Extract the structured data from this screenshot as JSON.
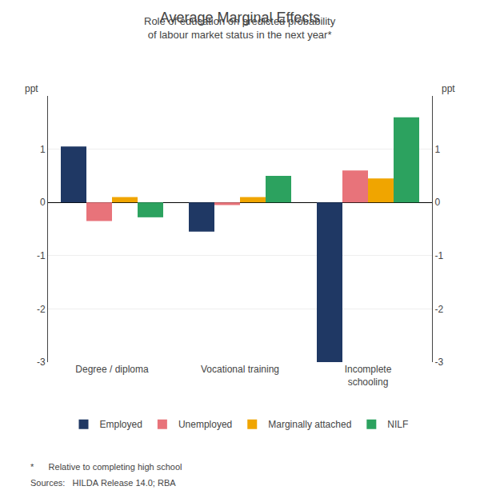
{
  "chart_data": {
    "type": "bar",
    "title": "Average Marginal Effects",
    "subtitle": "Role of education on predicted probability\nof labour market status in the next year*",
    "categories": [
      "Degree / diploma",
      "Vocational training",
      "Incomplete\nschooling"
    ],
    "series": [
      {
        "name": "Employed",
        "color": "#1f3864",
        "values": [
          1.05,
          -0.55,
          -3.0
        ]
      },
      {
        "name": "Unemployed",
        "color": "#e8737a",
        "values": [
          -0.35,
          -0.05,
          0.6
        ]
      },
      {
        "name": "Marginally attached",
        "color": "#f0a500",
        "values": [
          0.1,
          0.1,
          0.45
        ]
      },
      {
        "name": "NILF",
        "color": "#2ca25f",
        "values": [
          -0.28,
          0.5,
          1.6
        ]
      }
    ],
    "ylabel": "ppt",
    "y2label": "ppt",
    "ylim": [
      -3,
      2
    ],
    "yticks": [
      -3,
      -2,
      -1,
      0,
      1
    ],
    "y2lim": [
      -3,
      2
    ],
    "y2ticks": [
      -3,
      -2,
      -1,
      0,
      1
    ],
    "annotations": [
      "*      Relative to completing high school",
      "Sources:   HILDA Release 14.0; RBA"
    ],
    "grid": true,
    "legend": "bottom"
  }
}
